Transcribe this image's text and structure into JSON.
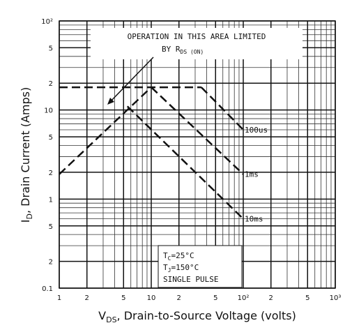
{
  "chart_data": {
    "type": "line",
    "ylabel": {
      "main": "I",
      "sub": "D",
      "rest": ", Drain Current (Amps)"
    },
    "xlabel": {
      "main": "V",
      "sub": "DS",
      "rest": ", Drain-to-Source Voltage (volts)"
    },
    "annotation": {
      "line1": "OPERATION IN THIS AREA LIMITED",
      "line2": "BY R",
      "line2_sub": "DS (ON)"
    },
    "conditions": {
      "tc_main": "T",
      "tc_sub": "C",
      "tc_rest": "=25°C",
      "tj_main": "T",
      "tj_sub": "J",
      "tj_rest": "=150°C",
      "pulse": "SINGLE PULSE"
    },
    "log_x": true,
    "log_y": true,
    "grid": true,
    "color": "#111111",
    "xlim": [
      1,
      1000
    ],
    "ylim": [
      0.1,
      100
    ],
    "xticks": [
      1,
      2,
      5,
      10,
      {
        "value": 20,
        "label": "2"
      },
      {
        "value": 50,
        "label": "5"
      },
      {
        "value": 100,
        "label": "10²"
      },
      {
        "value": 200,
        "label": "2"
      },
      {
        "value": 500,
        "label": "5"
      },
      {
        "value": 1000,
        "label": "10³"
      }
    ],
    "yticks": [
      {
        "value": 0.1,
        "label": "0.1"
      },
      {
        "value": 0.2,
        "label": "2"
      },
      {
        "value": 0.5,
        "label": "5"
      },
      1,
      2,
      5,
      10,
      {
        "value": 20,
        "label": "2"
      },
      {
        "value": 50,
        "label": "5"
      },
      {
        "value": 100,
        "label": "10²"
      }
    ],
    "series": [
      {
        "x": [
          1,
          10
        ],
        "values": [
          1.9,
          18
        ]
      },
      {
        "x": [
          1,
          35
        ],
        "values": [
          18,
          18
        ]
      },
      {
        "name": "100us",
        "x": [
          35,
          100
        ],
        "values": [
          18,
          6
        ]
      },
      {
        "name": "1ms",
        "x": [
          10,
          100
        ],
        "values": [
          18,
          1.9
        ]
      },
      {
        "name": "10ms",
        "x": [
          5.5,
          100
        ],
        "values": [
          11,
          0.6
        ]
      }
    ]
  }
}
